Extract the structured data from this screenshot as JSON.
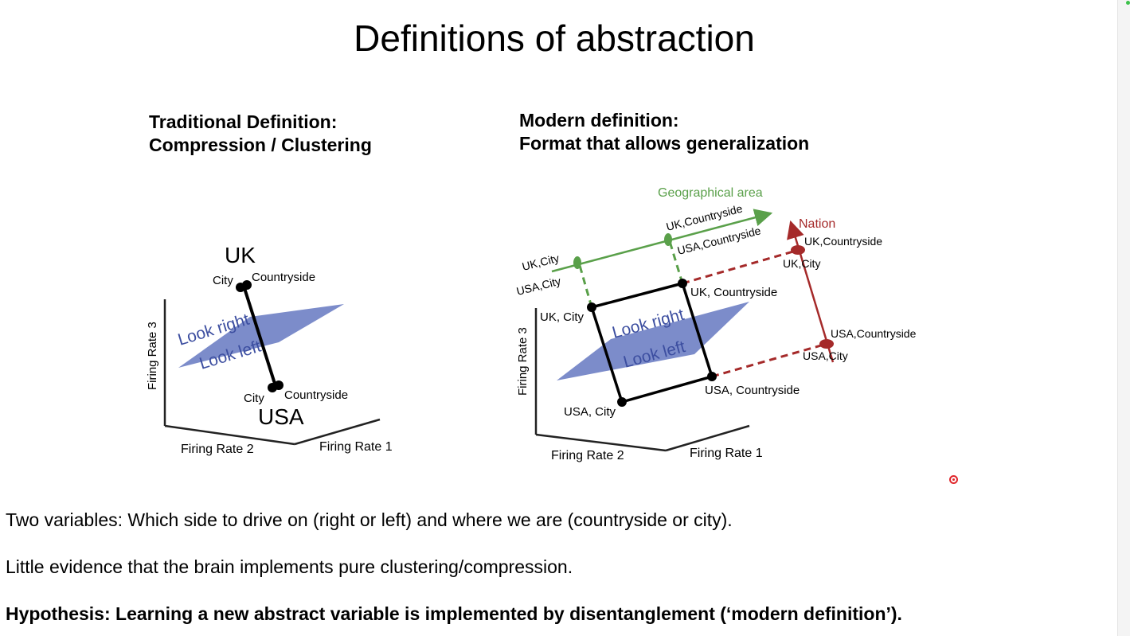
{
  "slide": {
    "title": "Definitions of abstraction",
    "left_heading": {
      "line1": "Traditional Definition:",
      "line2": "Compression / Clustering"
    },
    "right_heading": {
      "line1": "Modern definition:",
      "line2": "Format that allows generalization"
    },
    "bullets": [
      "Two variables: Which side to drive on (right or left) and where we are (countryside or city).",
      "Little evidence that the brain implements pure clustering/compression.",
      "Hypothesis: Learning a new abstract variable is implemented by disentanglement (‘modern definition’)."
    ]
  },
  "left_diagram": {
    "cluster_top_label": "UK",
    "cluster_bottom_label": "USA",
    "point_labels": {
      "uk_city": "City",
      "uk_countryside": "Countryside",
      "usa_city": "City",
      "usa_countryside": "Countryside"
    },
    "plane_labels": [
      "Look right",
      "Look left"
    ],
    "axes": [
      "Firing Rate 3",
      "Firing Rate 2",
      "Firing Rate 1"
    ]
  },
  "right_diagram": {
    "point_labels": {
      "uk_city": "UK, City",
      "uk_countryside": "UK, Countryside",
      "usa_city": "USA, City",
      "usa_countryside": "USA, Countryside"
    },
    "plane_labels": [
      "Look right",
      "Look left"
    ],
    "axes": [
      "Firing Rate 3",
      "Firing Rate 2",
      "Firing Rate 1"
    ],
    "geo_axis": {
      "name": "Geographical area",
      "labels": [
        "UK,City",
        "USA,City",
        "UK,Countryside",
        "USA,Countryside"
      ]
    },
    "nation_axis": {
      "name": "Nation",
      "labels": [
        "UK,Countryside",
        "UK,City",
        "USA,Countryside",
        "USA,City"
      ]
    }
  },
  "colors": {
    "plane": "#6e7fc4",
    "plane_text": "#3c4ea0",
    "geographical_axis": "#5aa04a",
    "nation_axis": "#a52a2a",
    "points": "#000000"
  }
}
